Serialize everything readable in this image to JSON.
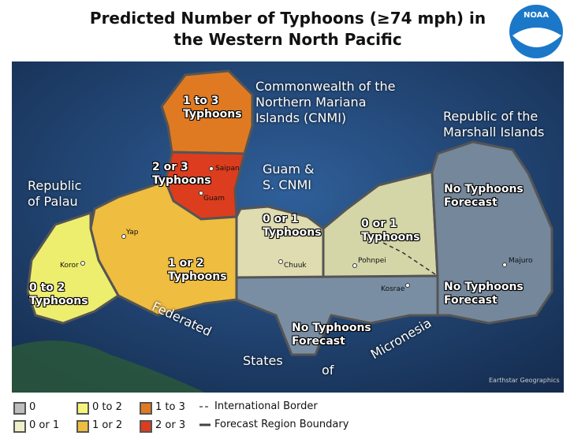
{
  "title": "Predicted Number of Typhoons (≥74 mph) in the Western North Pacific",
  "logo": "NOAA",
  "areas": [
    "Commonwealth of the Northern Mariana Islands (CNMI)",
    "Guam & S. CNMI",
    "Republic of the Marshall Islands",
    "Republic of Palau"
  ],
  "fsm_words": [
    "Federated",
    "States",
    "of",
    "Micronesia"
  ],
  "forecasts": [
    "1 to 3 Typhoons",
    "2 or 3 Typhoons",
    "0 or 1 Typhoons",
    "0 or 1 Typhoons",
    "No Typhoons Forecast",
    "1 or 2 Typhoons",
    "0 to 2 Typhoons",
    "No Typhoons Forecast",
    "No Typhoons Forecast"
  ],
  "places": [
    "Saipan",
    "Guam",
    "Yap",
    "Koror",
    "Chuuk",
    "Pohnpei",
    "Kosrae",
    "Majuro"
  ],
  "credit": "Earthstar Geographics",
  "legend": {
    "categories": [
      {
        "label": "0",
        "color": "#bdbdbd"
      },
      {
        "label": "0 or 1",
        "color": "#f0f0c8"
      },
      {
        "label": "0 to 2",
        "color": "#f4f47c"
      },
      {
        "label": "1 or 2",
        "color": "#efbd3f"
      },
      {
        "label": "1 to 3",
        "color": "#e07a22"
      },
      {
        "label": "2 or 3",
        "color": "#dc3d1e"
      }
    ],
    "lines": [
      "International Border",
      "Forecast Region Boundary"
    ]
  }
}
